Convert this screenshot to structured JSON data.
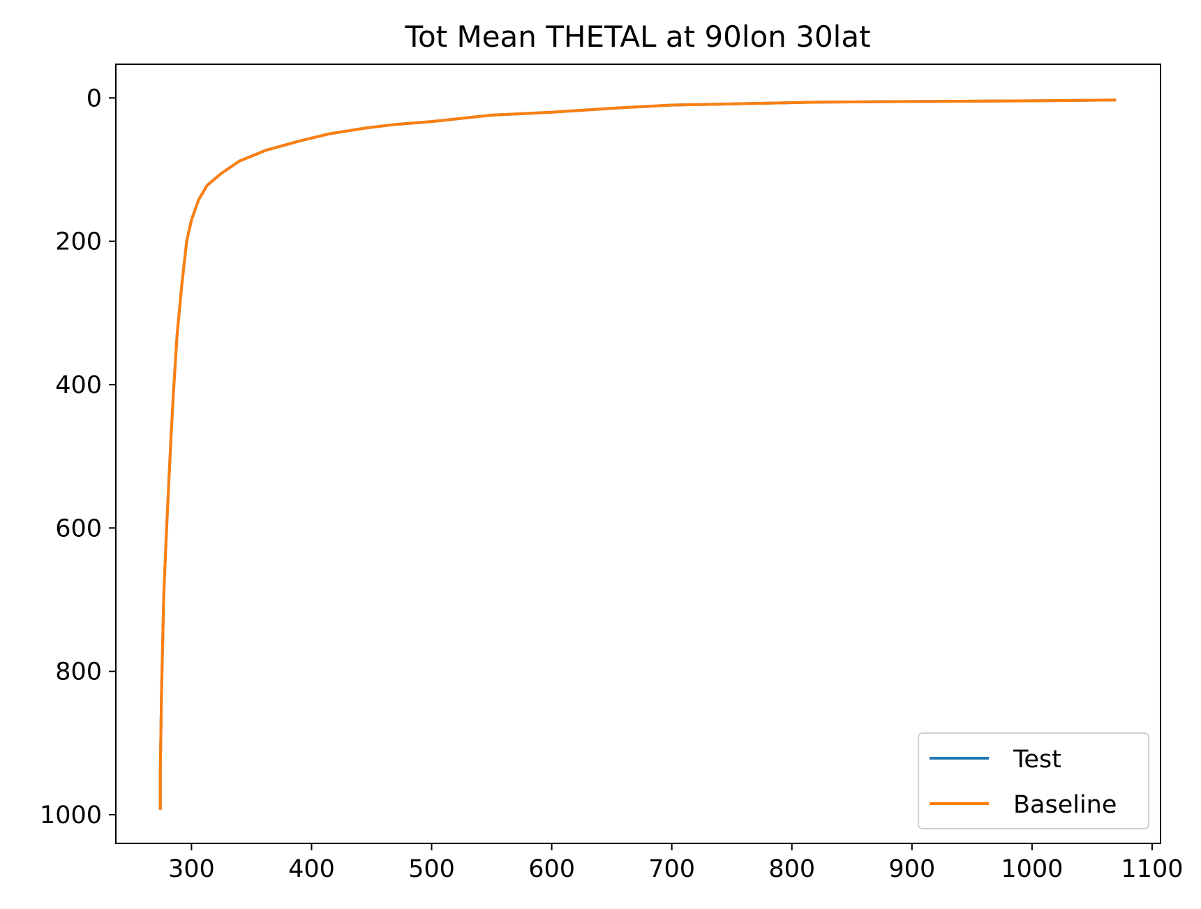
{
  "chart_data": {
    "type": "line",
    "title": "Tot Mean THETAL at 90lon 30lat",
    "xlabel": "",
    "ylabel": "",
    "xlim": [
      237,
      1107
    ],
    "ylim": [
      1040,
      -47
    ],
    "y_inverted": true,
    "grid": false,
    "legend_position": "lower-right",
    "x_ticks": [
      300,
      400,
      500,
      600,
      700,
      800,
      900,
      1000,
      1100
    ],
    "x_tick_labels": [
      "300",
      "400",
      "500",
      "600",
      "700",
      "800",
      "900",
      "1000",
      "1100"
    ],
    "y_ticks": [
      0,
      200,
      400,
      600,
      800,
      1000
    ],
    "y_tick_labels": [
      "0",
      "200",
      "400",
      "600",
      "800",
      "1000"
    ],
    "series": [
      {
        "name": "Test",
        "color": "#1f77b4",
        "x": [
          1070,
          1000,
          900,
          820,
          760,
          700,
          655,
          600,
          550,
          500,
          470,
          445,
          415,
          390,
          362,
          340,
          325,
          313,
          306,
          300,
          296,
          292,
          288,
          285,
          283,
          281,
          279,
          277,
          276,
          275,
          274.5,
          274,
          274,
          274
        ],
        "y": [
          3,
          4,
          5,
          6,
          8,
          10,
          14,
          20,
          24,
          33,
          37,
          42,
          50,
          60,
          73,
          88,
          105,
          122,
          142,
          170,
          200,
          260,
          330,
          410,
          470,
          540,
          610,
          690,
          760,
          830,
          890,
          940,
          970,
          993
        ]
      },
      {
        "name": "Baseline",
        "color": "#ff7f0e",
        "x": [
          1070,
          1000,
          900,
          820,
          760,
          700,
          655,
          600,
          550,
          500,
          470,
          445,
          415,
          390,
          362,
          340,
          325,
          313,
          306,
          300,
          296,
          292,
          288,
          285,
          283,
          281,
          279,
          277,
          276,
          275,
          274.5,
          274,
          274,
          274
        ],
        "y": [
          3,
          4,
          5,
          6,
          8,
          10,
          14,
          20,
          24,
          33,
          37,
          42,
          50,
          60,
          73,
          88,
          105,
          122,
          142,
          170,
          200,
          260,
          330,
          410,
          470,
          540,
          610,
          690,
          760,
          830,
          890,
          940,
          970,
          993
        ]
      }
    ]
  }
}
